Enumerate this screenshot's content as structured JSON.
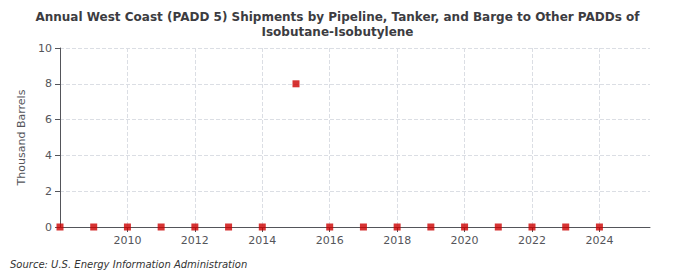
{
  "chart_data": {
    "type": "scatter",
    "title": "Annual West Coast (PADD 5) Shipments by Pipeline, Tanker, and Barge to Other PADDs of\nIsobutane-Isobutylene",
    "ylabel": "Thousand Barrels",
    "annotations": [
      "Source: U.S. Energy Information Administration"
    ],
    "x": [
      2008,
      2009,
      2010,
      2011,
      2012,
      2013,
      2014,
      2015,
      2016,
      2017,
      2018,
      2019,
      2020,
      2021,
      2022,
      2023,
      2024
    ],
    "values": [
      0,
      0,
      0,
      0,
      0,
      0,
      0,
      8,
      0,
      0,
      0,
      0,
      0,
      0,
      0,
      0,
      0
    ],
    "color": "#cc0000",
    "marker": "square",
    "xlim": [
      2008,
      2025.5
    ],
    "xticks": [
      2010,
      2012,
      2014,
      2016,
      2018,
      2020,
      2022,
      2024
    ],
    "ylim": [
      0,
      10
    ],
    "yticks": [
      0,
      2,
      4,
      6,
      8,
      10
    ],
    "grid": true
  }
}
